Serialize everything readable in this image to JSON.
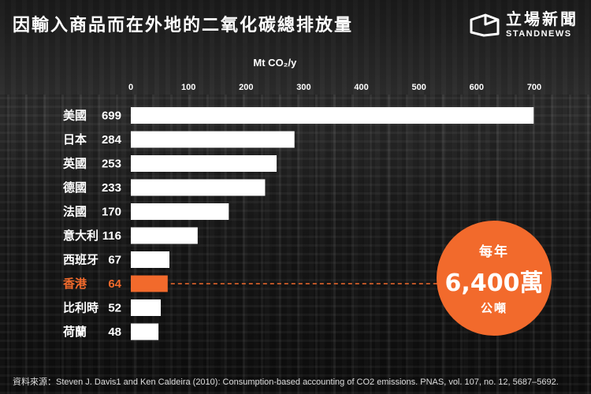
{
  "header": {
    "title": "因輸入商品而在外地的二氧化碳總排放量"
  },
  "logo": {
    "name_cn": "立場新聞",
    "name_en": "STANDNEWS"
  },
  "badge": {
    "line1": "每年",
    "line2": "6,400萬",
    "line3": "公噸"
  },
  "source": "資料來源：Steven J. Davis1 and Ken Caldeira (2010): Consumption-based accounting of CO2 emissions. PNAS, vol. 107, no. 12, 5687–5692.",
  "colors": {
    "bar": "#ffffff",
    "highlight": "#f26a2c",
    "text": "#ffffff"
  },
  "chart_data": {
    "type": "bar",
    "orientation": "horizontal",
    "title": "",
    "xlabel": "Mt CO₂/y",
    "ylabel": "",
    "xlim": [
      0,
      700
    ],
    "xticks": [
      0,
      100,
      200,
      300,
      400,
      500,
      600,
      700
    ],
    "categories": [
      "美國",
      "日本",
      "英國",
      "德國",
      "法國",
      "意大利",
      "西班牙",
      "香港",
      "比利時",
      "荷蘭"
    ],
    "values": [
      699,
      284,
      253,
      233,
      170,
      116,
      67,
      64,
      52,
      48
    ],
    "highlight_category": "香港",
    "grid": false,
    "legend": "none"
  }
}
